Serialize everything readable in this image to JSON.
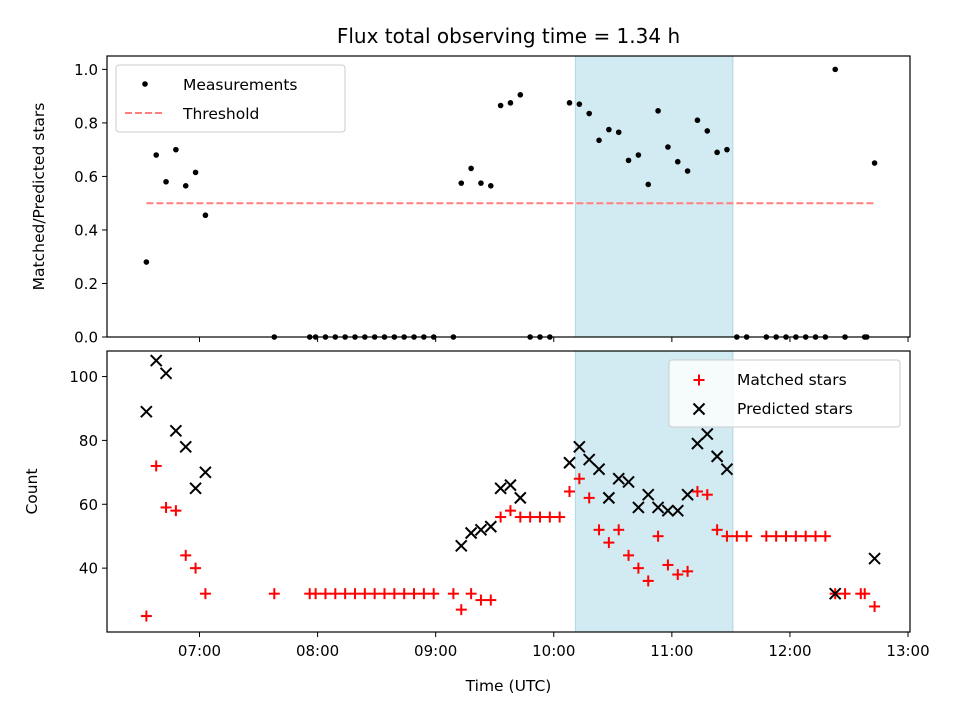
{
  "chart_data": [
    {
      "type": "scatter",
      "title": "Flux total observing time = 1.34 h",
      "xlabel": "",
      "ylabel": "Matched/Predicted stars",
      "ylim": [
        0,
        1.05
      ],
      "yticks": [
        "0.0",
        "0.2",
        "0.4",
        "0.6",
        "0.8",
        "1.0"
      ],
      "highlight_span": {
        "from": "10:11",
        "to": "11:31",
        "color": "#add8e6"
      },
      "legend": {
        "position": "top-left",
        "entries": [
          "Measurements",
          "Threshold"
        ]
      },
      "series": [
        {
          "name": "Measurements",
          "color": "#000000",
          "marker": "dot",
          "points": [
            [
              "06:33",
              0.28
            ],
            [
              "06:38",
              0.68
            ],
            [
              "06:43",
              0.58
            ],
            [
              "06:48",
              0.7
            ],
            [
              "06:53",
              0.565
            ],
            [
              "06:58",
              0.615
            ],
            [
              "07:03",
              0.455
            ],
            [
              "07:38",
              0.0
            ],
            [
              "07:56",
              0.0
            ],
            [
              "07:59",
              0.0
            ],
            [
              "08:04",
              0.0
            ],
            [
              "08:09",
              0.0
            ],
            [
              "08:14",
              0.0
            ],
            [
              "08:19",
              0.0
            ],
            [
              "08:24",
              0.0
            ],
            [
              "08:29",
              0.0
            ],
            [
              "08:34",
              0.0
            ],
            [
              "08:39",
              0.0
            ],
            [
              "08:44",
              0.0
            ],
            [
              "08:49",
              0.0
            ],
            [
              "08:54",
              0.0
            ],
            [
              "08:59",
              0.0
            ],
            [
              "09:09",
              0.0
            ],
            [
              "09:13",
              0.575
            ],
            [
              "09:18",
              0.63
            ],
            [
              "09:23",
              0.575
            ],
            [
              "09:28",
              0.565
            ],
            [
              "09:33",
              0.865
            ],
            [
              "09:38",
              0.875
            ],
            [
              "09:43",
              0.905
            ],
            [
              "09:48",
              0.0
            ],
            [
              "09:53",
              0.0
            ],
            [
              "09:58",
              0.0
            ],
            [
              "10:08",
              0.875
            ],
            [
              "10:13",
              0.87
            ],
            [
              "10:18",
              0.835
            ],
            [
              "10:23",
              0.735
            ],
            [
              "10:28",
              0.775
            ],
            [
              "10:33",
              0.765
            ],
            [
              "10:38",
              0.66
            ],
            [
              "10:43",
              0.68
            ],
            [
              "10:48",
              0.57
            ],
            [
              "10:53",
              0.845
            ],
            [
              "10:58",
              0.71
            ],
            [
              "11:03",
              0.655
            ],
            [
              "11:08",
              0.62
            ],
            [
              "11:13",
              0.81
            ],
            [
              "11:18",
              0.77
            ],
            [
              "11:23",
              0.69
            ],
            [
              "11:28",
              0.7
            ],
            [
              "11:33",
              0.0
            ],
            [
              "11:38",
              0.0
            ],
            [
              "11:48",
              0.0
            ],
            [
              "11:53",
              0.0
            ],
            [
              "11:58",
              0.0
            ],
            [
              "12:03",
              0.0
            ],
            [
              "12:08",
              0.0
            ],
            [
              "12:13",
              0.0
            ],
            [
              "12:18",
              0.0
            ],
            [
              "12:23",
              1.0
            ],
            [
              "12:28",
              0.0
            ],
            [
              "12:38",
              0.0
            ],
            [
              "12:39",
              0.0
            ],
            [
              "12:43",
              0.65
            ]
          ]
        },
        {
          "name": "Threshold",
          "color": "#ff7f7f",
          "marker": "dashed-line",
          "points": [
            [
              "06:33",
              0.5
            ],
            [
              "12:43",
              0.5
            ]
          ]
        }
      ]
    },
    {
      "type": "scatter",
      "title": "",
      "xlabel": "Time (UTC)",
      "ylabel": "Count",
      "ylim": [
        20,
        108
      ],
      "yticks": [
        "40",
        "60",
        "80",
        "100"
      ],
      "xticks": [
        "07:00",
        "08:00",
        "09:00",
        "10:00",
        "11:00",
        "12:00",
        "13:00"
      ],
      "xlim": [
        "06:13",
        "13:01"
      ],
      "highlight_span": {
        "from": "10:11",
        "to": "11:31",
        "color": "#add8e6"
      },
      "legend": {
        "position": "top-right",
        "entries": [
          "Matched stars",
          "Predicted stars"
        ]
      },
      "series": [
        {
          "name": "Matched stars",
          "color": "#ff0000",
          "marker": "plus",
          "points": [
            [
              "06:33",
              25
            ],
            [
              "06:38",
              72
            ],
            [
              "06:43",
              59
            ],
            [
              "06:48",
              58
            ],
            [
              "06:53",
              44
            ],
            [
              "06:58",
              40
            ],
            [
              "07:03",
              32
            ],
            [
              "07:38",
              32
            ],
            [
              "07:56",
              32
            ],
            [
              "07:59",
              32
            ],
            [
              "08:04",
              32
            ],
            [
              "08:09",
              32
            ],
            [
              "08:14",
              32
            ],
            [
              "08:19",
              32
            ],
            [
              "08:24",
              32
            ],
            [
              "08:29",
              32
            ],
            [
              "08:34",
              32
            ],
            [
              "08:39",
              32
            ],
            [
              "08:44",
              32
            ],
            [
              "08:49",
              32
            ],
            [
              "08:54",
              32
            ],
            [
              "08:59",
              32
            ],
            [
              "09:09",
              32
            ],
            [
              "09:13",
              27
            ],
            [
              "09:18",
              32
            ],
            [
              "09:23",
              30
            ],
            [
              "09:28",
              30
            ],
            [
              "09:33",
              56
            ],
            [
              "09:38",
              58
            ],
            [
              "09:43",
              56
            ],
            [
              "09:48",
              56
            ],
            [
              "09:53",
              56
            ],
            [
              "09:58",
              56
            ],
            [
              "10:03",
              56
            ],
            [
              "10:08",
              64
            ],
            [
              "10:13",
              68
            ],
            [
              "10:18",
              62
            ],
            [
              "10:23",
              52
            ],
            [
              "10:28",
              48
            ],
            [
              "10:33",
              52
            ],
            [
              "10:38",
              44
            ],
            [
              "10:43",
              40
            ],
            [
              "10:48",
              36
            ],
            [
              "10:53",
              50
            ],
            [
              "10:58",
              41
            ],
            [
              "11:03",
              38
            ],
            [
              "11:08",
              39
            ],
            [
              "11:13",
              64
            ],
            [
              "11:18",
              63
            ],
            [
              "11:23",
              52
            ],
            [
              "11:28",
              50
            ],
            [
              "11:33",
              50
            ],
            [
              "11:38",
              50
            ],
            [
              "11:48",
              50
            ],
            [
              "11:53",
              50
            ],
            [
              "11:58",
              50
            ],
            [
              "12:03",
              50
            ],
            [
              "12:08",
              50
            ],
            [
              "12:13",
              50
            ],
            [
              "12:18",
              50
            ],
            [
              "12:23",
              32
            ],
            [
              "12:28",
              32
            ],
            [
              "12:36",
              32
            ],
            [
              "12:38",
              32
            ],
            [
              "12:43",
              28
            ]
          ]
        },
        {
          "name": "Predicted stars",
          "color": "#000000",
          "marker": "x",
          "points": [
            [
              "06:33",
              89
            ],
            [
              "06:38",
              105
            ],
            [
              "06:43",
              101
            ],
            [
              "06:48",
              83
            ],
            [
              "06:53",
              78
            ],
            [
              "06:58",
              65
            ],
            [
              "07:03",
              70
            ],
            [
              "09:13",
              47
            ],
            [
              "09:18",
              51
            ],
            [
              "09:23",
              52
            ],
            [
              "09:28",
              53
            ],
            [
              "09:33",
              65
            ],
            [
              "09:38",
              66
            ],
            [
              "09:43",
              62
            ],
            [
              "10:08",
              73
            ],
            [
              "10:13",
              78
            ],
            [
              "10:18",
              74
            ],
            [
              "10:23",
              71
            ],
            [
              "10:28",
              62
            ],
            [
              "10:33",
              68
            ],
            [
              "10:38",
              67
            ],
            [
              "10:43",
              59
            ],
            [
              "10:48",
              63
            ],
            [
              "10:53",
              59
            ],
            [
              "10:58",
              58
            ],
            [
              "11:03",
              58
            ],
            [
              "11:08",
              63
            ],
            [
              "11:13",
              79
            ],
            [
              "11:18",
              82
            ],
            [
              "11:23",
              75
            ],
            [
              "11:28",
              71
            ],
            [
              "12:23",
              32
            ],
            [
              "12:43",
              43
            ]
          ]
        }
      ]
    }
  ]
}
